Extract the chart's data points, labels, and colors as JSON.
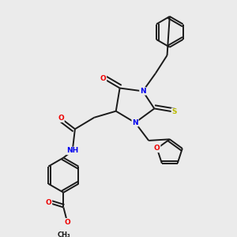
{
  "background_color": "#ebebeb",
  "figsize": [
    3.0,
    3.0
  ],
  "dpi": 100,
  "bond_color": "#1a1a1a",
  "atom_colors": {
    "N": "#0000ee",
    "O": "#ee0000",
    "S": "#bbbb00",
    "C": "#1a1a1a"
  },
  "lw": 1.4,
  "fs": 6.5
}
